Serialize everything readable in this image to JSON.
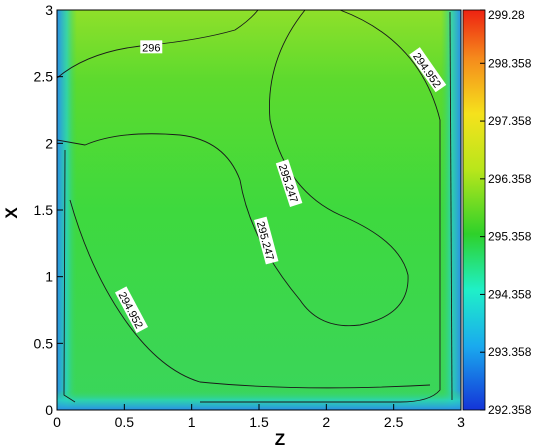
{
  "chart_data": {
    "type": "heatmap",
    "title": "",
    "xlabel": "Z",
    "ylabel": "X",
    "xlim": [
      0,
      3
    ],
    "ylim": [
      0,
      3
    ],
    "x_ticks": [
      "0",
      "0.5",
      "1",
      "1.5",
      "2",
      "2.5",
      "3"
    ],
    "y_ticks": [
      "0",
      "0.5",
      "1",
      "1.5",
      "2",
      "2.5",
      "3"
    ],
    "colorbar": {
      "min": 292.358,
      "max": 299.28,
      "labels": [
        "299.28",
        "298.358",
        "297.358",
        "296.358",
        "295.358",
        "294.358",
        "293.358",
        "292.358"
      ],
      "values": [
        299.28,
        298.358,
        297.358,
        296.358,
        295.358,
        294.358,
        293.358,
        292.358
      ]
    },
    "contour_labels": [
      {
        "text": "296",
        "value": 296,
        "z": 0.7,
        "x": 2.72
      },
      {
        "text": "294.952",
        "value": 294.952,
        "z": 2.75,
        "x": 2.55
      },
      {
        "text": "295.247",
        "value": 295.247,
        "z": 1.72,
        "x": 1.7
      },
      {
        "text": "295.247",
        "value": 295.247,
        "z": 1.55,
        "x": 1.27
      },
      {
        "text": "294.952",
        "value": 294.952,
        "z": 0.55,
        "x": 0.75
      }
    ]
  }
}
